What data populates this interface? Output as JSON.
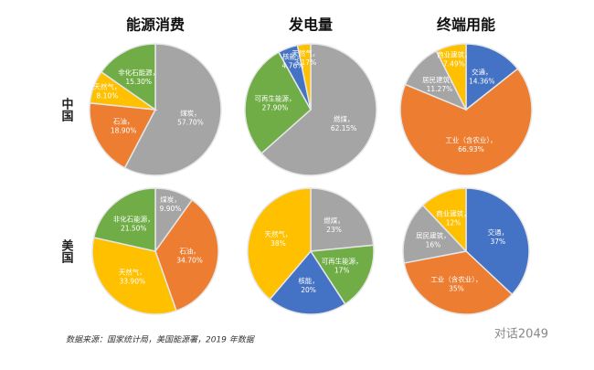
{
  "chart_data": [
    {
      "type": "pie",
      "title": "能源消费",
      "categories": [
        "煤炭，",
        "石油，",
        "天然气，",
        "非化石能源，"
      ],
      "values": [
        57.7,
        18.9,
        8.1,
        15.3
      ],
      "value_labels": [
        "57.70%",
        "18.90%",
        "8.10%",
        "15.30%"
      ],
      "colors": [
        "#a5a5a5",
        "#ed7d31",
        "#ffc000",
        "#70ad47"
      ]
    },
    {
      "type": "pie",
      "title": "发电量",
      "categories": [
        "燃煤，",
        "可再生能源，",
        "核能，",
        "天然气，"
      ],
      "values": [
        62.15,
        27.9,
        4.76,
        3.17
      ],
      "value_labels": [
        "62.15%",
        "27.90%",
        "4.76%",
        "3.17%"
      ],
      "colors": [
        "#a5a5a5",
        "#70ad47",
        "#4472c4",
        "#ffc000"
      ]
    },
    {
      "type": "pie",
      "title": "终端用能",
      "categories": [
        "交通，",
        "工业（含农业），",
        "居民建筑，",
        "商业建筑，"
      ],
      "values": [
        14.36,
        66.93,
        11.27,
        7.49
      ],
      "value_labels": [
        "14.36%",
        "66.93%",
        "11.27%",
        "7.49%"
      ],
      "colors": [
        "#4472c4",
        "#ed7d31",
        "#a5a5a5",
        "#ffc000"
      ]
    },
    {
      "type": "pie",
      "categories": [
        "煤炭，",
        "石油，",
        "天然气，",
        "非化石能源，"
      ],
      "values": [
        9.9,
        34.7,
        33.9,
        21.5
      ],
      "value_labels": [
        "9.90%",
        "34.70%",
        "33.90%",
        "21.50%"
      ],
      "colors": [
        "#a5a5a5",
        "#ed7d31",
        "#ffc000",
        "#70ad47"
      ]
    },
    {
      "type": "pie",
      "categories": [
        "燃煤，",
        "可再生能源，",
        "核能，",
        "天然气，"
      ],
      "values": [
        23,
        17,
        20,
        38
      ],
      "value_labels": [
        "23%",
        "17%",
        "20%",
        "38%"
      ],
      "colors": [
        "#a5a5a5",
        "#70ad47",
        "#4472c4",
        "#ffc000"
      ]
    },
    {
      "type": "pie",
      "categories": [
        "交通，",
        "工业（含农业），",
        "居民建筑，",
        "商业建筑，"
      ],
      "values": [
        37,
        35,
        16,
        12
      ],
      "value_labels": [
        "37%",
        "35%",
        "16%",
        "12%"
      ],
      "colors": [
        "#4472c4",
        "#ed7d31",
        "#a5a5a5",
        "#ffc000"
      ]
    }
  ],
  "row_labels": [
    "中国",
    "美国"
  ],
  "source": "数据来源：国家统计局，美国能源署，2019 年数据",
  "watermark": "对话2049"
}
